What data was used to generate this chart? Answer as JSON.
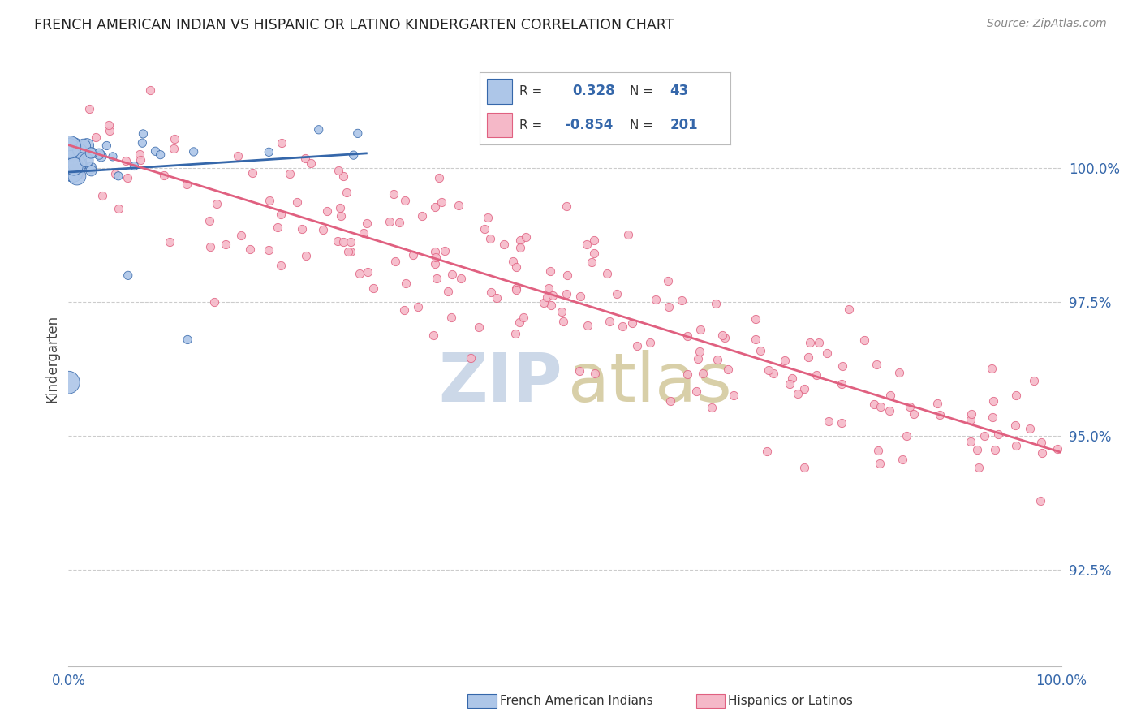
{
  "title": "FRENCH AMERICAN INDIAN VS HISPANIC OR LATINO KINDERGARTEN CORRELATION CHART",
  "source": "Source: ZipAtlas.com",
  "ylabel": "Kindergarten",
  "blue_color": "#adc6e8",
  "pink_color": "#f5b8c8",
  "blue_line_color": "#3567aa",
  "pink_line_color": "#e06080",
  "ytick_labels": [
    "100.0%",
    "97.5%",
    "95.0%",
    "92.5%"
  ],
  "ytick_vals": [
    1.0,
    0.975,
    0.95,
    0.925
  ],
  "xmin": 0.0,
  "xmax": 1.0,
  "ymin": 0.907,
  "ymax": 1.022,
  "bg_color": "#ffffff",
  "watermark_zip_color": "#ccd8e8",
  "watermark_atlas_color": "#d8cfa8",
  "legend_r1_val": "0.328",
  "legend_n1_val": "43",
  "legend_r2_val": "-0.854",
  "legend_n2_val": "201",
  "blue_seed": 42,
  "pink_seed": 17
}
